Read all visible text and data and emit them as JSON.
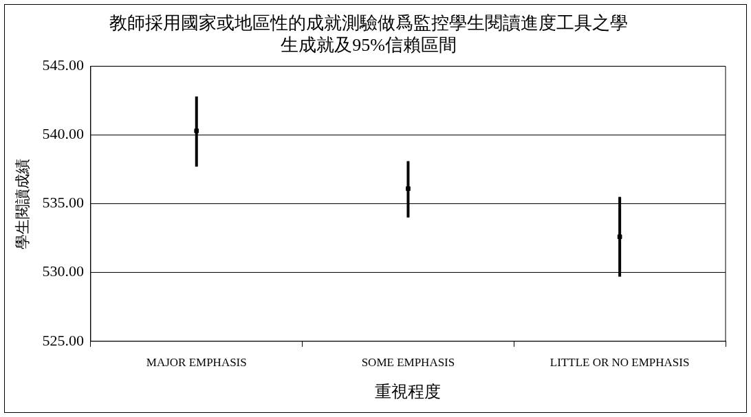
{
  "chart_data": {
    "type": "scatter",
    "title": "教師採用國家或地區性的成就測驗做爲監控學生閱讀進度工具之學生成就及95%信賴區間",
    "xlabel": "重視程度",
    "ylabel": "學生閱讀成績",
    "categories": [
      "MAJOR EMPHASIS",
      "SOME EMPHASIS",
      "LITTLE OR NO EMPHASIS"
    ],
    "values": [
      540.3,
      536.1,
      532.6
    ],
    "errors": [
      [
        537.7,
        542.8
      ],
      [
        534.0,
        538.1
      ],
      [
        529.7,
        535.5
      ]
    ],
    "color": "#000000",
    "ylim": [
      525,
      545
    ],
    "yticks": [
      {
        "value": 525,
        "label": "525.00"
      },
      {
        "value": 530,
        "label": "530.00"
      },
      {
        "value": 535,
        "label": "535.00"
      },
      {
        "value": 540,
        "label": "540.00"
      },
      {
        "value": 545,
        "label": "545.00"
      }
    ],
    "grid": "y",
    "legend": false,
    "marker": "square"
  }
}
